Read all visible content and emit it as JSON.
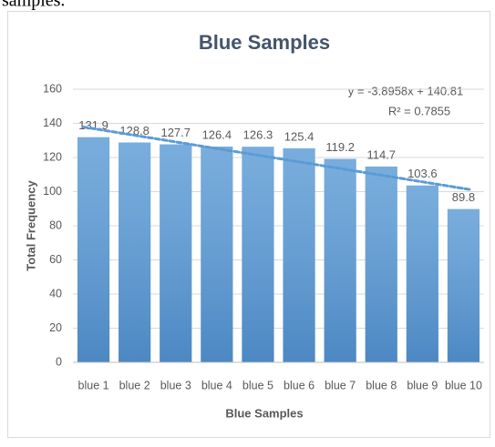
{
  "page_text": "samples.",
  "chart_data": {
    "type": "bar",
    "title": "Blue Samples",
    "x_label": "Blue Samples",
    "y_label": "Total Frequency",
    "categories": [
      "blue 1",
      "blue 2",
      "blue 3",
      "blue 4",
      "blue 5",
      "blue 6",
      "blue 7",
      "blue 8",
      "blue 9",
      "blue 10"
    ],
    "values": [
      131.9,
      128.8,
      127.7,
      126.4,
      126.3,
      125.4,
      119.2,
      114.7,
      103.6,
      89.8
    ],
    "color": "#5b9bd5",
    "ylim": [
      0,
      160
    ],
    "yticks": [
      0,
      20,
      40,
      60,
      80,
      100,
      120,
      140,
      160
    ],
    "grid": true,
    "trendline": {
      "slope": -3.8958,
      "intercept": 140.81,
      "color": "#5b9bd5",
      "equation": "y = -3.8958x + 140.81",
      "r2": "R² = 0.7855"
    }
  }
}
